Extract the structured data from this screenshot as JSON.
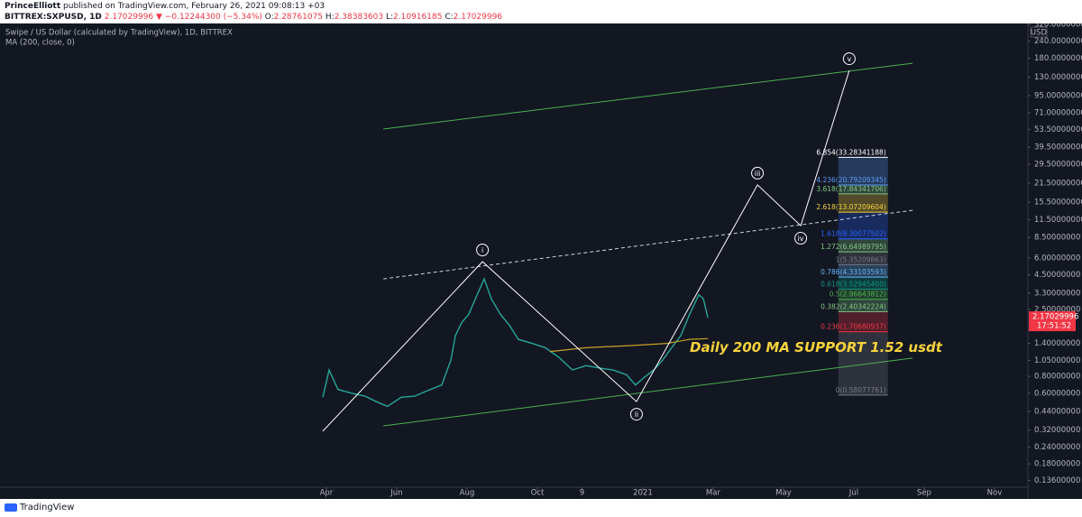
{
  "header": {
    "author": "PrinceElliott",
    "published": "published on TradingView.com, February 26, 2021 09:08:13 +03",
    "symbol": "BITTREX:SXPUSD, 1D",
    "last": "2.17029996",
    "change": "▼ −0.12244300 (−5.34%)",
    "ohlc": [
      {
        "label": "O:",
        "value": "2.28761075"
      },
      {
        "label": "H:",
        "value": "2.38383603"
      },
      {
        "label": "L:",
        "value": "2.10916185"
      },
      {
        "label": "C:",
        "value": "2.17029996"
      }
    ]
  },
  "chart_data": {
    "type": "line",
    "log_scale": true,
    "grid": false,
    "axis_unit": "USD",
    "price_tag": "2.17029996",
    "countdown": "17:51:52",
    "annotation": "Daily 200 MA SUPPORT 1.52 usdt",
    "xlim": [
      -9.28,
      19.95
    ],
    "xticks": [
      {
        "value": 0,
        "label": "Apr"
      },
      {
        "value": 2,
        "label": "Jun"
      },
      {
        "value": 4,
        "label": "Aug"
      },
      {
        "value": 6,
        "label": "Oct"
      },
      {
        "value": 7.27,
        "label": "9"
      },
      {
        "value": 9,
        "label": "2021"
      },
      {
        "value": 11,
        "label": "Mar"
      },
      {
        "value": 13,
        "label": "May"
      },
      {
        "value": 15,
        "label": "Jul"
      },
      {
        "value": 17,
        "label": "Sep"
      },
      {
        "value": 19,
        "label": "Nov"
      }
    ],
    "ylim": [
      0.121,
      345.5
    ],
    "yticks": [
      {
        "value": 320,
        "label": "320.00000000"
      },
      {
        "value": 240,
        "label": "240.00000000"
      },
      {
        "value": 180,
        "label": "180.00000000"
      },
      {
        "value": 130,
        "label": "130.00000000"
      },
      {
        "value": 95,
        "label": "95.00000000"
      },
      {
        "value": 71,
        "label": "71.00000000"
      },
      {
        "value": 53.5,
        "label": "53.50000000"
      },
      {
        "value": 39.5,
        "label": "39.50000000"
      },
      {
        "value": 29.5,
        "label": "29.50000000"
      },
      {
        "value": 21.5,
        "label": "21.50000000"
      },
      {
        "value": 15.5,
        "label": "15.50000000"
      },
      {
        "value": 11.5,
        "label": "11.50000000"
      },
      {
        "value": 8.5,
        "label": "8.50000000"
      },
      {
        "value": 6,
        "label": "6.00000000"
      },
      {
        "value": 4.5,
        "label": "4.50000000"
      },
      {
        "value": 3.3,
        "label": "3.30000000"
      },
      {
        "value": 2.5,
        "label": "2.50000000"
      },
      {
        "value": 1.4,
        "label": "1.40000000"
      },
      {
        "value": 1.05,
        "label": "1.05000000"
      },
      {
        "value": 0.8,
        "label": "0.80000000"
      },
      {
        "value": 0.6,
        "label": "0.60000000"
      },
      {
        "value": 0.44,
        "label": "0.44000000"
      },
      {
        "value": 0.32,
        "label": "0.32000000"
      },
      {
        "value": 0.24,
        "label": "0.24000000"
      },
      {
        "value": 0.18,
        "label": "0.18000000"
      },
      {
        "value": 0.136,
        "label": "0.13600000"
      }
    ],
    "series": [
      {
        "name": "Swipe / US Dollar (calculated by TradingView), 1D, BITTREX",
        "color": "#26a69a",
        "x": [
          -0.1,
          0.08,
          0.33,
          0.72,
          1.1,
          1.49,
          1.74,
          2.13,
          2.51,
          2.9,
          3.28,
          3.54,
          3.67,
          3.85,
          4.05,
          4.31,
          4.49,
          4.69,
          4.95,
          5.21,
          5.46,
          5.85,
          6.23,
          6.62,
          7.0,
          7.38,
          7.77,
          8.15,
          8.54,
          8.79,
          9.05,
          9.31,
          9.56,
          9.82,
          10.08,
          10.33,
          10.59,
          10.72,
          10.85
        ],
        "values": [
          0.56,
          0.89,
          0.64,
          0.6,
          0.57,
          0.51,
          0.48,
          0.56,
          0.57,
          0.63,
          0.69,
          1.05,
          1.6,
          2.0,
          2.3,
          3.3,
          4.2,
          3.0,
          2.3,
          1.9,
          1.5,
          1.4,
          1.3,
          1.1,
          0.89,
          0.96,
          0.92,
          0.89,
          0.82,
          0.69,
          0.79,
          0.89,
          1.05,
          1.3,
          1.6,
          2.3,
          3.2,
          3.0,
          2.17
        ]
      },
      {
        "name": "MA (200, close, 0)",
        "color": "#c9a227",
        "x": [
          6.36,
          7.38,
          8.67,
          9.69,
          10.33,
          10.85
        ],
        "values": [
          1.22,
          1.3,
          1.35,
          1.4,
          1.5,
          1.52
        ]
      }
    ],
    "fib": {
      "x": [
        14.56,
        15.97
      ],
      "levels": [
        {
          "label": "0(0.58077761)",
          "value": 0.58077761,
          "color": "#787b86"
        },
        {
          "label": "0.236(1.70680937)",
          "value": 1.70680937,
          "color": "#f23645"
        },
        {
          "label": "0.382(2.40342224)",
          "value": 2.40342224,
          "color": "#81c784"
        },
        {
          "label": "0.5(2.96643812)",
          "value": 2.96643812,
          "color": "#4caf50"
        },
        {
          "label": "0.618(3.52945400)",
          "value": 3.529454,
          "color": "#089981"
        },
        {
          "label": "0.786(4.33103593)",
          "value": 4.33103593,
          "color": "#64b5f6"
        },
        {
          "label": "1(5.35209863)",
          "value": 5.35209863,
          "color": "#787b86"
        },
        {
          "label": "1.272(6.64989795)",
          "value": 6.64989795,
          "color": "#81c784"
        },
        {
          "label": "1.618(8.30077502)",
          "value": 8.30077502,
          "color": "#2962ff"
        },
        {
          "label": "2.618(13.07209604)",
          "value": 13.07209604,
          "color": "#f7d23b"
        },
        {
          "label": "3.618(17.84341706)",
          "value": 17.84341706,
          "color": "#81c784"
        },
        {
          "label": "4.236(20.79209345)",
          "value": 20.79209345,
          "color": "#5b9cf6"
        },
        {
          "label": "6.854(33.28341188)",
          "value": 33.28341188,
          "color": "#ffffff"
        }
      ]
    },
    "waves": {
      "color": "#ffffff",
      "x": [
        -0.1,
        4.44,
        8.82,
        12.26,
        13.49,
        14.87
      ],
      "values": [
        0.314,
        5.63,
        0.52,
        20.8,
        10.4,
        146
      ],
      "labels": [
        null,
        "i",
        "ii",
        "iii",
        "iv",
        "v"
      ]
    },
    "trendlines": [
      {
        "x": [
          1.62,
          16.67
        ],
        "values": [
          53.9,
          165
        ],
        "color": "#4caf50",
        "dashed": false
      },
      {
        "x": [
          1.62,
          16.67
        ],
        "values": [
          0.344,
          1.09
        ],
        "color": "#4caf50",
        "dashed": false
      },
      {
        "x": [
          1.62,
          16.67
        ],
        "values": [
          4.2,
          13.5
        ],
        "color": "#d1d4dc",
        "dashed": true
      }
    ]
  }
}
